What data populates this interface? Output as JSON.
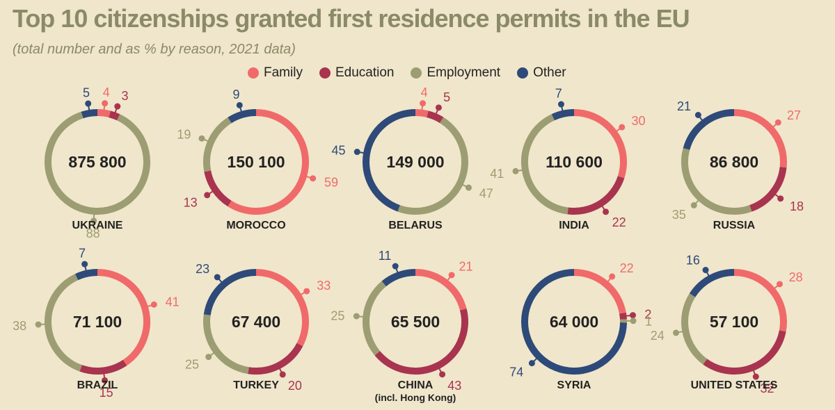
{
  "title": "Top 10 citizenships granted first residence permits in the EU",
  "subtitle": "(total number and as % by reason, 2021 data)",
  "colors": {
    "Family": "#f06a6a",
    "Education": "#a8344f",
    "Employment": "#9c9d72",
    "Other": "#2d4a79",
    "background": "#f0e6cb"
  },
  "legend": [
    {
      "label": "Family",
      "color": "#f06a6a"
    },
    {
      "label": "Education",
      "color": "#a8344f"
    },
    {
      "label": "Employment",
      "color": "#9c9d72"
    },
    {
      "label": "Other",
      "color": "#2d4a79"
    }
  ],
  "chart_data": {
    "type": "donut",
    "title": "Top 10 citizenships granted first residence permits in the EU",
    "subtitle": "(total number and as % by reason, 2021 data)",
    "series_order": [
      "Family",
      "Education",
      "Employment",
      "Other"
    ],
    "charts": [
      {
        "country": "UKRAINE",
        "total": "875 800",
        "values": {
          "Family": 4,
          "Education": 3,
          "Employment": 88,
          "Other": 5
        }
      },
      {
        "country": "MOROCCO",
        "total": "150 100",
        "values": {
          "Family": 59,
          "Education": 13,
          "Employment": 19,
          "Other": 9
        }
      },
      {
        "country": "BELARUS",
        "total": "149 000",
        "values": {
          "Family": 4,
          "Education": 5,
          "Employment": 47,
          "Other": 45
        }
      },
      {
        "country": "INDIA",
        "total": "110 600",
        "values": {
          "Family": 30,
          "Education": 22,
          "Employment": 41,
          "Other": 7
        }
      },
      {
        "country": "RUSSIA",
        "total": "86 800",
        "values": {
          "Family": 27,
          "Education": 18,
          "Employment": 35,
          "Other": 21
        }
      },
      {
        "country": "BRAZIL",
        "total": "71 100",
        "values": {
          "Family": 41,
          "Education": 15,
          "Employment": 38,
          "Other": 7
        }
      },
      {
        "country": "TURKEY",
        "total": "67 400",
        "values": {
          "Family": 33,
          "Education": 20,
          "Employment": 25,
          "Other": 23
        }
      },
      {
        "country": "CHINA",
        "subtitle": "(incl. Hong Kong)",
        "total": "65 500",
        "values": {
          "Family": 21,
          "Education": 43,
          "Employment": 25,
          "Other": 11
        }
      },
      {
        "country": "SYRIA",
        "total": "64 000",
        "values": {
          "Family": 22,
          "Education": 2,
          "Employment": 1,
          "Other": 74
        }
      },
      {
        "country": "UNITED STATES",
        "total": "57 100",
        "values": {
          "Family": 28,
          "Education": 32,
          "Employment": 24,
          "Other": 16
        }
      }
    ]
  }
}
